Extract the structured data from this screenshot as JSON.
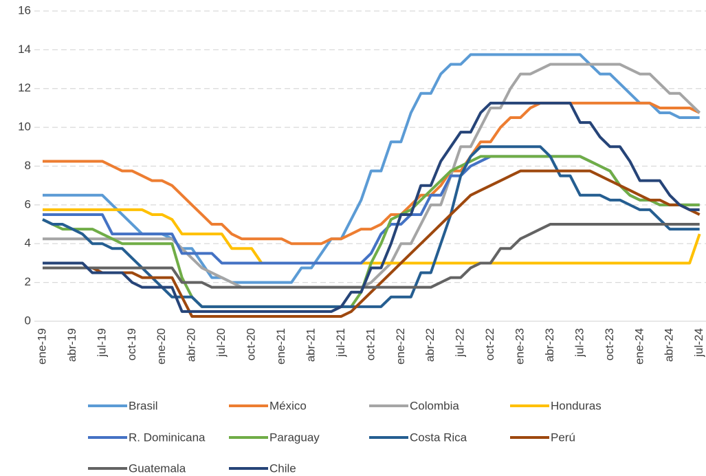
{
  "chart_data": {
    "type": "line",
    "categories": [
      "ene-19",
      null,
      null,
      "abr-19",
      null,
      null,
      "jul-19",
      null,
      null,
      "oct-19",
      null,
      null,
      "ene-20",
      null,
      null,
      "abr-20",
      null,
      null,
      "jul-20",
      null,
      null,
      "oct-20",
      null,
      null,
      "ene-21",
      null,
      null,
      "abr-21",
      null,
      null,
      "jul-21",
      null,
      null,
      "oct-21",
      null,
      null,
      "ene-22",
      null,
      null,
      "abr-22",
      null,
      null,
      "jul-22",
      null,
      null,
      "oct-22",
      null,
      null,
      "ene-23",
      null,
      null,
      "abr-23",
      null,
      null,
      "jul-23",
      null,
      null,
      "oct-23",
      null,
      null,
      "ene-24",
      null,
      null,
      "abr-24",
      null,
      null,
      "jul-24"
    ],
    "series": [
      {
        "name": "Brasil",
        "color": "#5b9bd5",
        "values": [
          6.5,
          6.5,
          6.5,
          6.5,
          6.5,
          6.5,
          6.5,
          6.0,
          5.5,
          5.0,
          4.5,
          4.5,
          4.5,
          4.25,
          3.75,
          3.75,
          3.0,
          2.25,
          2.25,
          2.0,
          2.0,
          2.0,
          2.0,
          2.0,
          2.0,
          2.0,
          2.75,
          2.75,
          3.5,
          4.25,
          4.25,
          5.25,
          6.25,
          7.75,
          7.75,
          9.25,
          9.25,
          10.75,
          11.75,
          11.75,
          12.75,
          13.25,
          13.25,
          13.75,
          13.75,
          13.75,
          13.75,
          13.75,
          13.75,
          13.75,
          13.75,
          13.75,
          13.75,
          13.75,
          13.75,
          13.25,
          12.75,
          12.75,
          12.25,
          11.75,
          11.25,
          11.25,
          10.75,
          10.75,
          10.5,
          10.5,
          10.5
        ]
      },
      {
        "name": "México",
        "color": "#ed7d31",
        "values": [
          8.25,
          8.25,
          8.25,
          8.25,
          8.25,
          8.25,
          8.25,
          8.0,
          7.75,
          7.75,
          7.5,
          7.25,
          7.25,
          7.0,
          6.5,
          6.0,
          5.5,
          5.0,
          5.0,
          4.5,
          4.25,
          4.25,
          4.25,
          4.25,
          4.25,
          4.0,
          4.0,
          4.0,
          4.0,
          4.25,
          4.25,
          4.5,
          4.75,
          4.75,
          5.0,
          5.5,
          5.5,
          6.0,
          6.5,
          6.5,
          7.0,
          7.75,
          7.75,
          8.5,
          9.25,
          9.25,
          10.0,
          10.5,
          10.5,
          11.0,
          11.25,
          11.25,
          11.25,
          11.25,
          11.25,
          11.25,
          11.25,
          11.25,
          11.25,
          11.25,
          11.25,
          11.25,
          11.0,
          11.0,
          11.0,
          11.0,
          10.75
        ]
      },
      {
        "name": "Colombia",
        "color": "#a5a5a5",
        "values": [
          4.25,
          4.25,
          4.25,
          4.25,
          4.25,
          4.25,
          4.25,
          4.25,
          4.25,
          4.25,
          4.25,
          4.25,
          4.25,
          4.25,
          3.75,
          3.25,
          2.75,
          2.5,
          2.25,
          2.0,
          1.75,
          1.75,
          1.75,
          1.75,
          1.75,
          1.75,
          1.75,
          1.75,
          1.75,
          1.75,
          1.75,
          1.75,
          1.75,
          2.0,
          2.5,
          3.0,
          4.0,
          4.0,
          5.0,
          6.0,
          6.0,
          7.5,
          9.0,
          9.0,
          10.0,
          11.0,
          11.0,
          12.0,
          12.75,
          12.75,
          13.0,
          13.25,
          13.25,
          13.25,
          13.25,
          13.25,
          13.25,
          13.25,
          13.25,
          13.0,
          12.75,
          12.75,
          12.25,
          11.75,
          11.75,
          11.25,
          10.75
        ]
      },
      {
        "name": "Honduras",
        "color": "#ffc000",
        "values": [
          5.75,
          5.75,
          5.75,
          5.75,
          5.75,
          5.75,
          5.75,
          5.75,
          5.75,
          5.75,
          5.75,
          5.5,
          5.5,
          5.25,
          4.5,
          4.5,
          4.5,
          4.5,
          4.5,
          3.75,
          3.75,
          3.75,
          3.0,
          3.0,
          3.0,
          3.0,
          3.0,
          3.0,
          3.0,
          3.0,
          3.0,
          3.0,
          3.0,
          3.0,
          3.0,
          3.0,
          3.0,
          3.0,
          3.0,
          3.0,
          3.0,
          3.0,
          3.0,
          3.0,
          3.0,
          3.0,
          3.0,
          3.0,
          3.0,
          3.0,
          3.0,
          3.0,
          3.0,
          3.0,
          3.0,
          3.0,
          3.0,
          3.0,
          3.0,
          3.0,
          3.0,
          3.0,
          3.0,
          3.0,
          3.0,
          3.0,
          4.5
        ]
      },
      {
        "name": "R. Dominicana",
        "color": "#4472c4",
        "values": [
          5.5,
          5.5,
          5.5,
          5.5,
          5.5,
          5.5,
          5.5,
          4.5,
          4.5,
          4.5,
          4.5,
          4.5,
          4.5,
          4.5,
          3.5,
          3.5,
          3.5,
          3.5,
          3.0,
          3.0,
          3.0,
          3.0,
          3.0,
          3.0,
          3.0,
          3.0,
          3.0,
          3.0,
          3.0,
          3.0,
          3.0,
          3.0,
          3.0,
          3.5,
          4.5,
          5.0,
          5.0,
          5.5,
          5.5,
          6.5,
          6.5,
          7.5,
          7.5,
          8.0,
          8.25,
          8.5,
          8.5,
          8.5,
          8.5,
          8.5,
          8.5,
          8.5,
          8.5,
          8.5,
          8.5,
          8.25,
          8.0,
          7.75,
          7.0,
          6.5,
          6.25,
          6.25,
          6.0,
          6.0,
          6.0,
          6.0,
          6.0
        ]
      },
      {
        "name": "Paraguay",
        "color": "#70ad47",
        "values": [
          5.25,
          5.0,
          4.75,
          4.75,
          4.75,
          4.75,
          4.5,
          4.25,
          4.0,
          4.0,
          4.0,
          4.0,
          4.0,
          4.0,
          2.25,
          1.25,
          0.75,
          0.75,
          0.75,
          0.75,
          0.75,
          0.75,
          0.75,
          0.75,
          0.75,
          0.75,
          0.75,
          0.75,
          0.75,
          0.75,
          0.75,
          0.75,
          1.5,
          3.0,
          4.0,
          5.25,
          5.5,
          5.75,
          6.25,
          6.75,
          7.25,
          7.75,
          8.0,
          8.25,
          8.5,
          8.5,
          8.5,
          8.5,
          8.5,
          8.5,
          8.5,
          8.5,
          8.5,
          8.5,
          8.5,
          8.25,
          8.0,
          7.75,
          7.0,
          6.5,
          6.25,
          6.25,
          6.0,
          6.0,
          6.0,
          6.0,
          6.0
        ]
      },
      {
        "name": "Costa Rica",
        "color": "#255e91",
        "values": [
          5.25,
          5.0,
          5.0,
          4.75,
          4.5,
          4.0,
          4.0,
          3.75,
          3.75,
          3.25,
          2.75,
          2.25,
          1.75,
          1.25,
          1.25,
          1.25,
          0.75,
          0.75,
          0.75,
          0.75,
          0.75,
          0.75,
          0.75,
          0.75,
          0.75,
          0.75,
          0.75,
          0.75,
          0.75,
          0.75,
          0.75,
          0.75,
          0.75,
          0.75,
          0.75,
          1.25,
          1.25,
          1.25,
          2.5,
          2.5,
          4.0,
          5.5,
          7.5,
          8.5,
          9.0,
          9.0,
          9.0,
          9.0,
          9.0,
          9.0,
          9.0,
          8.5,
          7.5,
          7.5,
          6.5,
          6.5,
          6.5,
          6.25,
          6.25,
          6.0,
          5.75,
          5.75,
          5.25,
          4.75,
          4.75,
          4.75,
          4.75
        ]
      },
      {
        "name": "Perú",
        "color": "#9e480e",
        "values": [
          2.75,
          2.75,
          2.75,
          2.75,
          2.75,
          2.75,
          2.5,
          2.5,
          2.5,
          2.5,
          2.25,
          2.25,
          2.25,
          2.25,
          1.25,
          0.25,
          0.25,
          0.25,
          0.25,
          0.25,
          0.25,
          0.25,
          0.25,
          0.25,
          0.25,
          0.25,
          0.25,
          0.25,
          0.25,
          0.25,
          0.25,
          0.5,
          1.0,
          1.5,
          2.0,
          2.5,
          3.0,
          3.5,
          4.0,
          4.5,
          5.0,
          5.5,
          6.0,
          6.5,
          6.75,
          7.0,
          7.25,
          7.5,
          7.75,
          7.75,
          7.75,
          7.75,
          7.75,
          7.75,
          7.75,
          7.75,
          7.5,
          7.25,
          7.0,
          6.75,
          6.5,
          6.25,
          6.25,
          6.0,
          6.0,
          5.75,
          5.5
        ]
      },
      {
        "name": "Guatemala",
        "color": "#636363",
        "values": [
          2.75,
          2.75,
          2.75,
          2.75,
          2.75,
          2.75,
          2.75,
          2.75,
          2.75,
          2.75,
          2.75,
          2.75,
          2.75,
          2.75,
          2.0,
          2.0,
          2.0,
          1.75,
          1.75,
          1.75,
          1.75,
          1.75,
          1.75,
          1.75,
          1.75,
          1.75,
          1.75,
          1.75,
          1.75,
          1.75,
          1.75,
          1.75,
          1.75,
          1.75,
          1.75,
          1.75,
          1.75,
          1.75,
          1.75,
          1.75,
          2.0,
          2.25,
          2.25,
          2.75,
          3.0,
          3.0,
          3.75,
          3.75,
          4.25,
          4.5,
          4.75,
          5.0,
          5.0,
          5.0,
          5.0,
          5.0,
          5.0,
          5.0,
          5.0,
          5.0,
          5.0,
          5.0,
          5.0,
          5.0,
          5.0,
          5.0,
          5.0
        ]
      },
      {
        "name": "Chile",
        "color": "#264478",
        "values": [
          3.0,
          3.0,
          3.0,
          3.0,
          3.0,
          2.5,
          2.5,
          2.5,
          2.5,
          2.0,
          1.75,
          1.75,
          1.75,
          1.75,
          0.5,
          0.5,
          0.5,
          0.5,
          0.5,
          0.5,
          0.5,
          0.5,
          0.5,
          0.5,
          0.5,
          0.5,
          0.5,
          0.5,
          0.5,
          0.5,
          0.75,
          1.5,
          1.5,
          2.75,
          2.75,
          4.0,
          5.5,
          5.5,
          7.0,
          7.0,
          8.25,
          9.0,
          9.75,
          9.75,
          10.75,
          11.25,
          11.25,
          11.25,
          11.25,
          11.25,
          11.25,
          11.25,
          11.25,
          11.25,
          10.25,
          10.25,
          9.5,
          9.0,
          9.0,
          8.25,
          7.25,
          7.25,
          7.25,
          6.5,
          6.0,
          5.75,
          5.75
        ]
      }
    ],
    "ylim": [
      0,
      16
    ],
    "yticks": [
      0,
      2,
      4,
      6,
      8,
      10,
      12,
      14,
      16
    ],
    "grid": true,
    "legend": "bottom"
  }
}
